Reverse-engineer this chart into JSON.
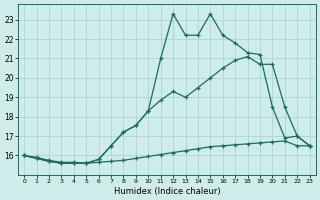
{
  "xlabel": "Humidex (Indice chaleur)",
  "bg_color": "#ceecea",
  "grid_color": "#aed4d0",
  "line_color": "#1a6b5e",
  "xlim": [
    -0.5,
    23.5
  ],
  "ylim": [
    15.0,
    23.8
  ],
  "yticks": [
    16,
    17,
    18,
    19,
    20,
    21,
    22,
    23
  ],
  "xticks": [
    0,
    1,
    2,
    3,
    4,
    5,
    6,
    7,
    8,
    9,
    10,
    11,
    12,
    13,
    14,
    15,
    16,
    17,
    18,
    19,
    20,
    21,
    22,
    23
  ],
  "line1_x": [
    0,
    1,
    2,
    3,
    4,
    5,
    6,
    7,
    8,
    9,
    10,
    11,
    12,
    13,
    14,
    15,
    16,
    17,
    18,
    19,
    20,
    21,
    22,
    23
  ],
  "line1_y": [
    16.0,
    15.9,
    15.75,
    15.65,
    15.65,
    15.6,
    15.65,
    15.7,
    15.75,
    15.85,
    15.95,
    16.05,
    16.15,
    16.25,
    16.35,
    16.45,
    16.5,
    16.55,
    16.6,
    16.65,
    16.7,
    16.75,
    16.5,
    16.5
  ],
  "line2_x": [
    0,
    1,
    2,
    3,
    4,
    5,
    6,
    7,
    8,
    9,
    10,
    11,
    12,
    13,
    14,
    15,
    16,
    17,
    18,
    19,
    20,
    21,
    22,
    23
  ],
  "line2_y": [
    16.0,
    15.85,
    15.7,
    15.6,
    15.6,
    15.6,
    15.8,
    16.5,
    17.2,
    17.55,
    18.3,
    18.85,
    19.3,
    19.0,
    19.5,
    20.0,
    20.5,
    20.9,
    21.1,
    20.7,
    20.7,
    18.5,
    17.0,
    16.5
  ],
  "line3_x": [
    0,
    1,
    2,
    3,
    4,
    5,
    6,
    7,
    8,
    9,
    10,
    11,
    12,
    13,
    14,
    15,
    16,
    17,
    18,
    19,
    20,
    21,
    22,
    23
  ],
  "line3_y": [
    16.0,
    15.85,
    15.7,
    15.6,
    15.6,
    15.6,
    15.8,
    16.5,
    17.2,
    17.55,
    18.3,
    21.0,
    23.3,
    22.2,
    22.2,
    23.3,
    22.2,
    21.8,
    21.3,
    21.2,
    18.5,
    16.9,
    17.0,
    16.5
  ]
}
